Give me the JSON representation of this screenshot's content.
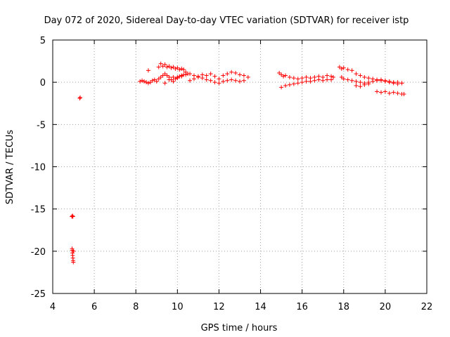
{
  "chart_data": {
    "type": "scatter",
    "title": "Day 072 of 2020, Sidereal Day-to-day VTEC variation (SDTVAR) for receiver istp",
    "xlabel": "GPS time / hours",
    "ylabel": "SDTVAR / TECUs",
    "xlim": [
      4,
      22
    ],
    "ylim": [
      -25,
      5
    ],
    "xticks": [
      4,
      6,
      8,
      10,
      12,
      14,
      16,
      18,
      20,
      22
    ],
    "yticks": [
      5,
      0,
      -5,
      -10,
      -15,
      -20,
      -25
    ],
    "grid": true,
    "marker": "+",
    "color": "#ff0000",
    "series": [
      {
        "name": "SDTVAR",
        "x": [
          5.3,
          5.32,
          4.92,
          4.95,
          4.97,
          4.93,
          4.94,
          4.95,
          4.96,
          4.97,
          4.98,
          4.99,
          5.0,
          8.2,
          8.3,
          8.4,
          8.5,
          8.6,
          8.7,
          8.8,
          8.9,
          9.0,
          9.1,
          9.2,
          9.3,
          9.4,
          9.5,
          9.6,
          9.7,
          9.8,
          9.9,
          10.0,
          10.1,
          10.2,
          10.3,
          8.6,
          9.1,
          9.2,
          9.3,
          9.4,
          9.5,
          9.6,
          9.7,
          9.8,
          9.9,
          10.0,
          10.1,
          10.2,
          10.3,
          10.4,
          10.5,
          9.4,
          9.6,
          9.8,
          10.0,
          10.2,
          10.4,
          10.6,
          10.8,
          11.0,
          11.2,
          11.4,
          11.6,
          11.8,
          12.0,
          12.2,
          12.4,
          12.6,
          12.8,
          13.0,
          13.2,
          13.4,
          10.6,
          10.8,
          11.0,
          11.2,
          11.4,
          11.6,
          11.8,
          12.0,
          12.2,
          12.4,
          12.6,
          12.8,
          13.0,
          13.2,
          14.9,
          15.0,
          15.1,
          15.2,
          15.4,
          15.6,
          15.8,
          16.0,
          16.2,
          16.4,
          16.6,
          16.8,
          17.0,
          17.2,
          17.4,
          17.5,
          15.0,
          15.2,
          15.4,
          15.6,
          15.8,
          16.0,
          16.2,
          16.4,
          16.6,
          16.8,
          17.0,
          17.2,
          17.4,
          17.8,
          17.9,
          18.0,
          18.2,
          18.4,
          18.6,
          18.8,
          19.0,
          19.2,
          19.4,
          19.6,
          19.8,
          20.0,
          20.2,
          20.4,
          20.6,
          20.8,
          17.9,
          18.0,
          18.2,
          18.4,
          18.6,
          18.8,
          19.0,
          19.2,
          19.4,
          19.6,
          19.8,
          20.0,
          20.2,
          20.4,
          20.6,
          20.8,
          18.6,
          18.8,
          19.0,
          19.2,
          19.6,
          19.8,
          20.0,
          20.2,
          20.4,
          20.6,
          20.8,
          20.9
        ],
        "y": [
          -1.9,
          -1.8,
          -15.9,
          -15.8,
          -15.9,
          -19.7,
          -19.9,
          -20.2,
          -20.5,
          -20.8,
          -21.1,
          -21.3,
          -20.0,
          0.1,
          0.2,
          0.1,
          0.0,
          -0.1,
          0.0,
          0.2,
          0.3,
          0.1,
          0.4,
          0.6,
          0.8,
          1.0,
          0.8,
          0.6,
          0.3,
          0.1,
          0.4,
          0.6,
          0.7,
          0.8,
          0.9,
          1.4,
          1.8,
          2.2,
          1.9,
          2.1,
          1.8,
          1.9,
          1.7,
          1.8,
          1.6,
          1.7,
          1.5,
          1.6,
          1.5,
          1.2,
          1.0,
          -0.1,
          0.3,
          0.6,
          0.5,
          0.7,
          0.9,
          1.0,
          0.8,
          0.7,
          0.9,
          0.8,
          1.0,
          0.7,
          0.4,
          0.8,
          1.0,
          1.2,
          1.1,
          0.9,
          0.8,
          0.6,
          0.2,
          0.4,
          0.6,
          0.5,
          0.3,
          0.2,
          0.0,
          -0.1,
          0.1,
          0.2,
          0.3,
          0.2,
          0.1,
          0.2,
          1.1,
          0.9,
          0.7,
          0.8,
          0.6,
          0.5,
          0.4,
          0.5,
          0.6,
          0.5,
          0.6,
          0.7,
          0.6,
          0.8,
          0.7,
          0.6,
          -0.6,
          -0.4,
          -0.3,
          -0.2,
          -0.1,
          0.0,
          0.1,
          0.1,
          0.2,
          0.3,
          0.2,
          0.3,
          0.3,
          1.8,
          1.6,
          1.7,
          1.5,
          1.4,
          1.0,
          0.8,
          0.6,
          0.5,
          0.4,
          0.3,
          0.3,
          0.2,
          0.1,
          0.0,
          0.0,
          -0.1,
          0.6,
          0.4,
          0.3,
          0.2,
          0.1,
          0.0,
          -0.1,
          0.0,
          0.1,
          0.2,
          0.2,
          0.1,
          0.0,
          -0.1,
          -0.2,
          -0.1,
          -0.4,
          -0.5,
          -0.3,
          -0.2,
          -1.1,
          -1.2,
          -1.1,
          -1.3,
          -1.2,
          -1.3,
          -1.4,
          -1.4
        ]
      }
    ]
  }
}
